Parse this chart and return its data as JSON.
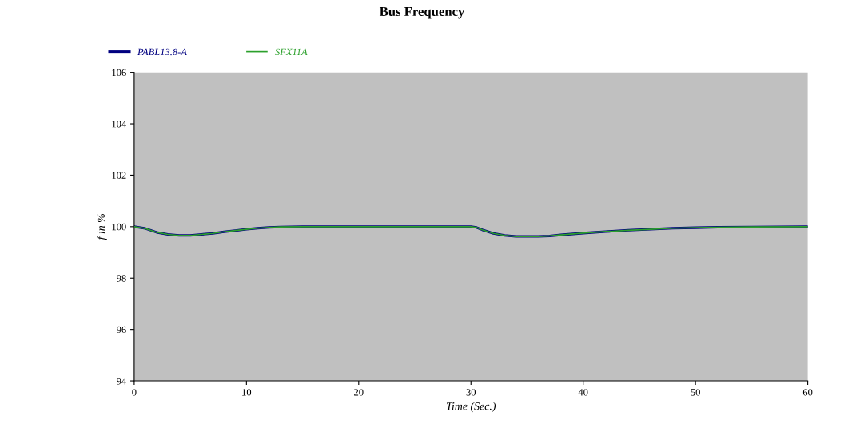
{
  "chart_data": {
    "type": "line",
    "title": "Bus Frequency",
    "xlabel": "Time (Sec.)",
    "ylabel": "f in %",
    "x": [
      0,
      1,
      2,
      3,
      4,
      5,
      6,
      7,
      8,
      9,
      10,
      11,
      12,
      13,
      15,
      30,
      30.5,
      31,
      32,
      33,
      34,
      36,
      37,
      38,
      40,
      42,
      44,
      46,
      48,
      50,
      52,
      55,
      60
    ],
    "series": [
      {
        "name": "PABL13.8-A",
        "color": "#000080",
        "values": [
          100,
          99.93,
          99.78,
          99.7,
          99.66,
          99.66,
          99.7,
          99.74,
          99.8,
          99.85,
          99.9,
          99.94,
          99.97,
          99.99,
          100,
          100,
          99.97,
          99.88,
          99.74,
          99.66,
          99.62,
          99.62,
          99.64,
          99.68,
          99.75,
          99.81,
          99.86,
          99.9,
          99.94,
          99.96,
          99.98,
          99.99,
          100
        ]
      },
      {
        "name": "SFX11A",
        "color": "#2ca02c",
        "values": [
          100,
          99.93,
          99.78,
          99.7,
          99.66,
          99.66,
          99.7,
          99.74,
          99.8,
          99.85,
          99.9,
          99.94,
          99.97,
          99.99,
          100,
          100,
          99.97,
          99.88,
          99.74,
          99.66,
          99.62,
          99.62,
          99.64,
          99.68,
          99.75,
          99.81,
          99.86,
          99.9,
          99.94,
          99.96,
          99.98,
          99.99,
          100
        ]
      }
    ],
    "xlim": [
      0,
      60
    ],
    "xticks": [
      0,
      10,
      20,
      30,
      40,
      50,
      60
    ],
    "ylim": [
      94,
      106
    ],
    "yticks": [
      94,
      96,
      98,
      100,
      102,
      104,
      106
    ],
    "grid": false,
    "legend": "top left",
    "marker": "none",
    "line_style": "solid"
  }
}
